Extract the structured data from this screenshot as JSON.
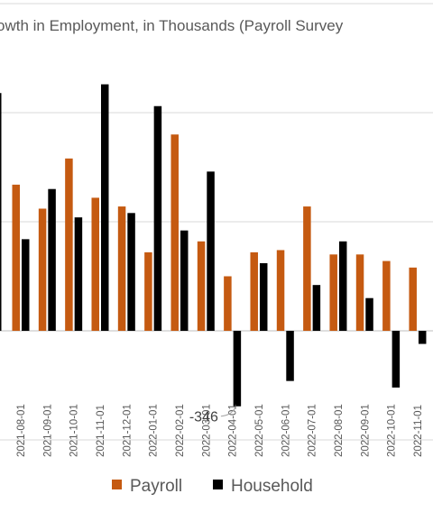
{
  "chart_data": {
    "type": "bar",
    "title": "owth in Employment, in Thousands (Payroll Survey",
    "categories": [
      "2021-08-01",
      "2021-09-01",
      "2021-10-01",
      "2021-11-01",
      "2021-12-01",
      "2022-01-01",
      "2022-02-01",
      "2022-03-01",
      "2022-04-01",
      "2022-05-01",
      "2022-06-01",
      "2022-07-01",
      "2022-08-01",
      "2022-09-01",
      "2022-10-01",
      "2022-11-01"
    ],
    "series": [
      {
        "name": "Payroll",
        "color": "#C55A11",
        "values": [
          670,
          560,
          790,
          610,
          570,
          360,
          900,
          410,
          250,
          360,
          370,
          570,
          350,
          350,
          320,
          290
        ]
      },
      {
        "name": "Household",
        "color": "#000000",
        "values": [
          420,
          650,
          520,
          1130,
          540,
          1030,
          460,
          730,
          -346,
          310,
          -230,
          210,
          410,
          150,
          -260,
          -60
        ]
      }
    ],
    "partial_series_start": {
      "name": "Household",
      "value": 1090
    },
    "ylim": [
      -500,
      2500
    ],
    "ytick_step": 500,
    "grid": true,
    "legend_position": "bottom",
    "annotations": [
      {
        "text": "-346",
        "category": "2022-04-01",
        "series": "Household"
      }
    ]
  }
}
